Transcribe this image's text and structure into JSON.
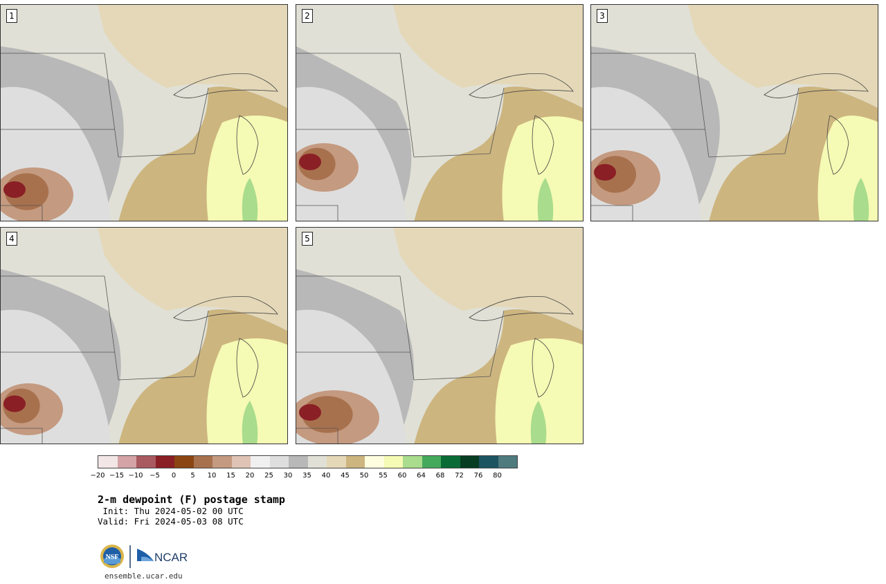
{
  "panels": [
    {
      "label": "1"
    },
    {
      "label": "2"
    },
    {
      "label": "3"
    },
    {
      "label": "4"
    },
    {
      "label": "5"
    }
  ],
  "colorbar": {
    "colors": [
      "#f3e6e6",
      "#d4a3a6",
      "#a85a60",
      "#8a1f25",
      "#8b4513",
      "#a8714e",
      "#c49a80",
      "#dfc3b4",
      "#f0f0f0",
      "#dedede",
      "#b8b8b8",
      "#e0e0d6",
      "#e4d8b8",
      "#cdb57f",
      "#fffde0",
      "#f5fab4",
      "#a9dc8c",
      "#45a95c",
      "#0b6b37",
      "#073d22",
      "#1d5461",
      "#4f7a7e"
    ],
    "ticks": [
      "−20",
      "−15",
      "−10",
      "−5",
      "0",
      "5",
      "10",
      "15",
      "20",
      "25",
      "30",
      "35",
      "40",
      "45",
      "50",
      "55",
      "60",
      "64",
      "68",
      "72",
      "76",
      "80"
    ]
  },
  "title": "2-m dewpoint (F) postage stamp",
  "init": " Init: Thu 2024-05-02 00 UTC",
  "valid": "Valid: Fri 2024-05-03 08 UTC",
  "logos": {
    "nsf": "NSF",
    "ncar": "NCAR"
  },
  "site": "ensemble.ucar.edu"
}
